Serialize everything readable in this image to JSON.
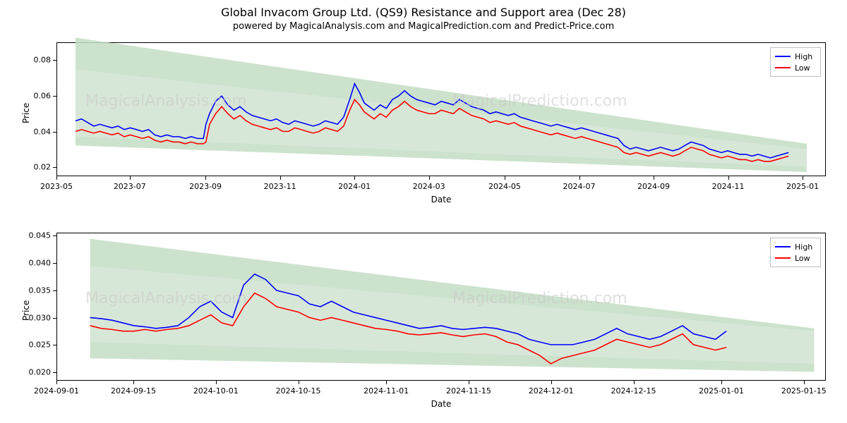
{
  "title": "Global Invacom Group Ltd. (QS9) Resistance and Support area (Dec 28)",
  "subtitle": "powered by MagicalAnalysis.com and MagicalPrediction.com and Predict-Price.com",
  "colors": {
    "high": "#0000ff",
    "low": "#ff0000",
    "band_fill": "#c3ddc3",
    "band_fill_inner": "#d8e8d8",
    "panel_border": "#000000",
    "tick": "#000000",
    "watermark": "#c8c8c8",
    "legend_border": "#bfbfbf",
    "background": "#ffffff"
  },
  "typography": {
    "title_fontsize": 16,
    "subtitle_fontsize": 13,
    "axis_label_fontsize": 12,
    "tick_fontsize": 11,
    "legend_fontsize": 11,
    "watermark_fontsize": 22
  },
  "legend": {
    "items": [
      {
        "label": "High",
        "color": "#0000ff"
      },
      {
        "label": "Low",
        "color": "#ff0000"
      }
    ]
  },
  "watermarks": [
    "MagicalAnalysis.com",
    "MagicalPrediction.com"
  ],
  "panel1": {
    "xlabel": "Date",
    "ylabel": "Price",
    "ylim": [
      0.015,
      0.09
    ],
    "yticks": [
      0.02,
      0.04,
      0.06,
      0.08
    ],
    "ytick_labels": [
      "0.02",
      "0.04",
      "0.06",
      "0.08"
    ],
    "xlim": [
      0,
      630
    ],
    "xticks": [
      0,
      60,
      122,
      183,
      244,
      305,
      367,
      428,
      489,
      550,
      611
    ],
    "xtick_labels": [
      "2023-05",
      "2023-07",
      "2023-09",
      "2023-11",
      "2024-01",
      "2024-03",
      "2024-05",
      "2024-07",
      "2024-09",
      "2024-11",
      "2025-01"
    ],
    "band_outer": {
      "x": [
        15,
        615,
        615,
        15
      ],
      "y": [
        0.093,
        0.033,
        0.017,
        0.032
      ]
    },
    "band_inner": {
      "x": [
        15,
        615,
        615,
        15
      ],
      "y": [
        0.075,
        0.03,
        0.02,
        0.037
      ]
    },
    "high": {
      "x": [
        15,
        20,
        25,
        30,
        35,
        40,
        45,
        50,
        55,
        60,
        65,
        70,
        75,
        80,
        85,
        90,
        95,
        100,
        105,
        110,
        115,
        120,
        122,
        125,
        130,
        135,
        140,
        145,
        150,
        155,
        160,
        165,
        170,
        175,
        180,
        185,
        190,
        195,
        200,
        205,
        210,
        215,
        220,
        225,
        230,
        235,
        240,
        244,
        248,
        252,
        256,
        260,
        265,
        270,
        275,
        280,
        285,
        290,
        295,
        300,
        305,
        310,
        315,
        320,
        325,
        330,
        335,
        340,
        345,
        350,
        355,
        360,
        365,
        370,
        375,
        380,
        385,
        390,
        395,
        400,
        405,
        410,
        415,
        420,
        425,
        430,
        435,
        440,
        445,
        450,
        455,
        460,
        465,
        470,
        475,
        480,
        485,
        490,
        495,
        500,
        505,
        510,
        515,
        520,
        525,
        530,
        535,
        540,
        545,
        550,
        555,
        560,
        565,
        570,
        575,
        580,
        585,
        590,
        595,
        600
      ],
      "y": [
        0.046,
        0.047,
        0.045,
        0.043,
        0.044,
        0.043,
        0.042,
        0.043,
        0.041,
        0.042,
        0.041,
        0.04,
        0.041,
        0.038,
        0.037,
        0.038,
        0.037,
        0.037,
        0.036,
        0.037,
        0.036,
        0.036,
        0.044,
        0.05,
        0.057,
        0.06,
        0.055,
        0.052,
        0.054,
        0.051,
        0.049,
        0.048,
        0.047,
        0.046,
        0.047,
        0.045,
        0.044,
        0.046,
        0.045,
        0.044,
        0.043,
        0.044,
        0.046,
        0.045,
        0.044,
        0.048,
        0.058,
        0.067,
        0.062,
        0.056,
        0.054,
        0.052,
        0.055,
        0.053,
        0.058,
        0.06,
        0.063,
        0.06,
        0.058,
        0.057,
        0.056,
        0.055,
        0.057,
        0.056,
        0.055,
        0.058,
        0.056,
        0.054,
        0.053,
        0.052,
        0.05,
        0.051,
        0.05,
        0.049,
        0.05,
        0.048,
        0.047,
        0.046,
        0.045,
        0.044,
        0.043,
        0.044,
        0.043,
        0.042,
        0.041,
        0.042,
        0.041,
        0.04,
        0.039,
        0.038,
        0.037,
        0.036,
        0.032,
        0.03,
        0.031,
        0.03,
        0.029,
        0.03,
        0.031,
        0.03,
        0.029,
        0.03,
        0.032,
        0.034,
        0.033,
        0.032,
        0.03,
        0.029,
        0.028,
        0.029,
        0.028,
        0.027,
        0.027,
        0.026,
        0.027,
        0.026,
        0.025,
        0.026,
        0.027,
        0.028
      ]
    },
    "low": {
      "x": [
        15,
        20,
        25,
        30,
        35,
        40,
        45,
        50,
        55,
        60,
        65,
        70,
        75,
        80,
        85,
        90,
        95,
        100,
        105,
        110,
        115,
        120,
        122,
        125,
        130,
        135,
        140,
        145,
        150,
        155,
        160,
        165,
        170,
        175,
        180,
        185,
        190,
        195,
        200,
        205,
        210,
        215,
        220,
        225,
        230,
        235,
        240,
        244,
        248,
        252,
        256,
        260,
        265,
        270,
        275,
        280,
        285,
        290,
        295,
        300,
        305,
        310,
        315,
        320,
        325,
        330,
        335,
        340,
        345,
        350,
        355,
        360,
        365,
        370,
        375,
        380,
        385,
        390,
        395,
        400,
        405,
        410,
        415,
        420,
        425,
        430,
        435,
        440,
        445,
        450,
        455,
        460,
        465,
        470,
        475,
        480,
        485,
        490,
        495,
        500,
        505,
        510,
        515,
        520,
        525,
        530,
        535,
        540,
        545,
        550,
        555,
        560,
        565,
        570,
        575,
        580,
        585,
        590,
        595,
        600
      ],
      "y": [
        0.04,
        0.041,
        0.04,
        0.039,
        0.04,
        0.039,
        0.038,
        0.039,
        0.037,
        0.038,
        0.037,
        0.036,
        0.037,
        0.035,
        0.034,
        0.035,
        0.034,
        0.034,
        0.033,
        0.034,
        0.033,
        0.033,
        0.034,
        0.044,
        0.05,
        0.054,
        0.05,
        0.047,
        0.049,
        0.046,
        0.044,
        0.043,
        0.042,
        0.041,
        0.042,
        0.04,
        0.04,
        0.042,
        0.041,
        0.04,
        0.039,
        0.04,
        0.042,
        0.041,
        0.04,
        0.043,
        0.052,
        0.058,
        0.055,
        0.051,
        0.049,
        0.047,
        0.05,
        0.048,
        0.052,
        0.054,
        0.057,
        0.054,
        0.052,
        0.051,
        0.05,
        0.05,
        0.052,
        0.051,
        0.05,
        0.053,
        0.051,
        0.049,
        0.048,
        0.047,
        0.045,
        0.046,
        0.045,
        0.044,
        0.045,
        0.043,
        0.042,
        0.041,
        0.04,
        0.039,
        0.038,
        0.039,
        0.038,
        0.037,
        0.036,
        0.037,
        0.036,
        0.035,
        0.034,
        0.033,
        0.032,
        0.031,
        0.028,
        0.027,
        0.028,
        0.027,
        0.026,
        0.027,
        0.028,
        0.027,
        0.026,
        0.027,
        0.029,
        0.031,
        0.03,
        0.029,
        0.027,
        0.026,
        0.025,
        0.026,
        0.025,
        0.024,
        0.024,
        0.023,
        0.024,
        0.023,
        0.023,
        0.024,
        0.025,
        0.026
      ]
    }
  },
  "panel2": {
    "xlabel": "Date",
    "ylabel": "Price",
    "ylim": [
      0.0185,
      0.0455
    ],
    "yticks": [
      0.02,
      0.025,
      0.03,
      0.035,
      0.04,
      0.045
    ],
    "ytick_labels": [
      "0.020",
      "0.025",
      "0.030",
      "0.035",
      "0.040",
      "0.045"
    ],
    "xlim": [
      0,
      140
    ],
    "xticks": [
      0,
      14,
      29,
      44,
      60,
      75,
      90,
      105,
      121,
      136
    ],
    "xtick_labels": [
      "2024-09-01",
      "2024-09-15",
      "2024-10-01",
      "2024-10-15",
      "2024-11-01",
      "2024-11-15",
      "2024-12-01",
      "2024-12-15",
      "2025-01-01",
      "2025-01-15"
    ],
    "band_outer": {
      "x": [
        6,
        138,
        138,
        6
      ],
      "y": [
        0.0445,
        0.028,
        0.02,
        0.0225
      ]
    },
    "band_inner": {
      "x": [
        6,
        138,
        138,
        6
      ],
      "y": [
        0.0395,
        0.0275,
        0.0215,
        0.0255
      ]
    },
    "high": {
      "x": [
        6,
        8,
        10,
        12,
        14,
        16,
        18,
        20,
        22,
        24,
        26,
        28,
        30,
        32,
        34,
        36,
        38,
        40,
        42,
        44,
        46,
        48,
        50,
        52,
        54,
        56,
        58,
        60,
        62,
        64,
        66,
        68,
        70,
        72,
        74,
        76,
        78,
        80,
        82,
        84,
        86,
        88,
        90,
        92,
        94,
        96,
        98,
        100,
        102,
        104,
        106,
        108,
        110,
        112,
        114,
        116,
        118,
        120,
        122
      ],
      "y": [
        0.03,
        0.0298,
        0.0295,
        0.029,
        0.0285,
        0.0283,
        0.028,
        0.0282,
        0.0285,
        0.03,
        0.032,
        0.033,
        0.031,
        0.03,
        0.036,
        0.038,
        0.037,
        0.035,
        0.0345,
        0.034,
        0.0325,
        0.032,
        0.033,
        0.032,
        0.031,
        0.0305,
        0.03,
        0.0295,
        0.029,
        0.0285,
        0.028,
        0.0282,
        0.0285,
        0.028,
        0.0278,
        0.028,
        0.0282,
        0.028,
        0.0275,
        0.027,
        0.026,
        0.0255,
        0.025,
        0.025,
        0.025,
        0.0255,
        0.026,
        0.027,
        0.028,
        0.027,
        0.0265,
        0.026,
        0.0265,
        0.0275,
        0.0285,
        0.027,
        0.0265,
        0.026,
        0.0275
      ]
    },
    "low": {
      "x": [
        6,
        8,
        10,
        12,
        14,
        16,
        18,
        20,
        22,
        24,
        26,
        28,
        30,
        32,
        34,
        36,
        38,
        40,
        42,
        44,
        46,
        48,
        50,
        52,
        54,
        56,
        58,
        60,
        62,
        64,
        66,
        68,
        70,
        72,
        74,
        76,
        78,
        80,
        82,
        84,
        86,
        88,
        90,
        92,
        94,
        96,
        98,
        100,
        102,
        104,
        106,
        108,
        110,
        112,
        114,
        116,
        118,
        120,
        122
      ],
      "y": [
        0.0285,
        0.028,
        0.0278,
        0.0275,
        0.0275,
        0.0278,
        0.0275,
        0.0278,
        0.028,
        0.0285,
        0.0295,
        0.0305,
        0.029,
        0.0285,
        0.032,
        0.0345,
        0.0335,
        0.032,
        0.0315,
        0.031,
        0.03,
        0.0295,
        0.03,
        0.0295,
        0.029,
        0.0285,
        0.028,
        0.0278,
        0.0275,
        0.027,
        0.0268,
        0.027,
        0.0272,
        0.0268,
        0.0265,
        0.0268,
        0.027,
        0.0265,
        0.0255,
        0.025,
        0.024,
        0.023,
        0.0215,
        0.0225,
        0.023,
        0.0235,
        0.024,
        0.025,
        0.026,
        0.0255,
        0.025,
        0.0245,
        0.025,
        0.026,
        0.027,
        0.025,
        0.0245,
        0.024,
        0.0245
      ]
    }
  }
}
